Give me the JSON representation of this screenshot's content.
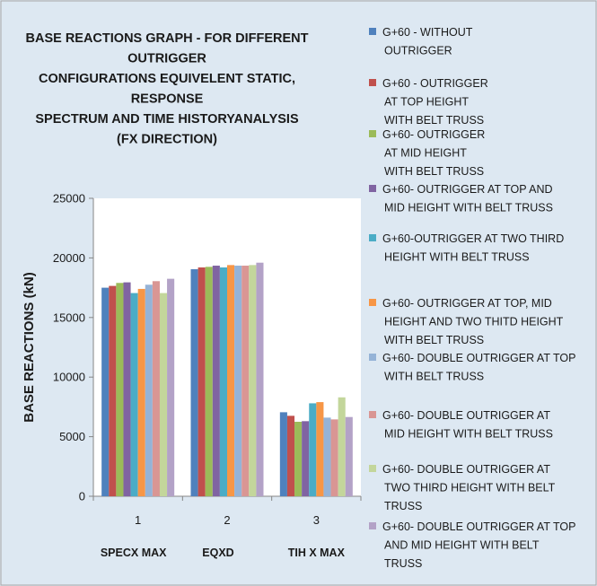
{
  "chart_data": {
    "type": "bar",
    "title_lines": [
      "BASE REACTIONS GRAPH - FOR DIFFERENT",
      "OUTRIGGER",
      "CONFIGURATIONS EQUIVELENT STATIC,",
      "RESPONSE",
      "SPECTRUM AND TIME HISTORYANALYSIS",
      "(FX DIRECTION)"
    ],
    "ylabel": "BASE REACTIONS (kN)",
    "ylim": [
      0,
      25000
    ],
    "yticks": [
      "0",
      "5000",
      "10000",
      "15000",
      "20000",
      "25000"
    ],
    "ytick_values": [
      0,
      5000,
      10000,
      15000,
      20000,
      25000
    ],
    "categories": [
      "1",
      "2",
      "3"
    ],
    "category_names": [
      "SPECX MAX",
      "EQXD",
      "TIH X MAX"
    ],
    "gridlines": false,
    "legend_position": "right",
    "series": [
      {
        "name_lines": [
          "G+60 - WITHOUT",
          "OUTRIGGER"
        ],
        "color": "#4f81bd",
        "values": [
          17500,
          19050,
          7050
        ]
      },
      {
        "name_lines": [
          "G+60 - OUTRIGGER",
          "AT TOP HEIGHT",
          "WITH BELT TRUSS"
        ],
        "color": "#c0504d",
        "values": [
          17650,
          19200,
          6750
        ]
      },
      {
        "name_lines": [
          "G+60- OUTRIGGER",
          "AT MID HEIGHT",
          "WITH BELT TRUSS"
        ],
        "color": "#9bbb59",
        "values": [
          17900,
          19250,
          6250
        ]
      },
      {
        "name_lines": [
          "G+60- OUTRIGGER AT TOP AND",
          "MID HEIGHT WITH BELT TRUSS"
        ],
        "color": "#8064a2",
        "values": [
          17950,
          19350,
          6300
        ]
      },
      {
        "name_lines": [
          "G+60-OUTRIGGER AT TWO THIRD",
          "HEIGHT WITH BELT TRUSS"
        ],
        "color": "#4bacc6",
        "values": [
          17050,
          19200,
          7800
        ]
      },
      {
        "name_lines": [
          "G+60- OUTRIGGER AT TOP, MID",
          "HEIGHT AND TWO THITD HEIGHT",
          "WITH BELT TRUSS"
        ],
        "color": "#f79646",
        "values": [
          17400,
          19400,
          7900
        ]
      },
      {
        "name_lines": [
          "G+60- DOUBLE OUTRIGGER AT TOP",
          "WITH BELT TRUSS"
        ],
        "color": "#95b3d7",
        "values": [
          17750,
          19350,
          6600
        ]
      },
      {
        "name_lines": [
          "G+60- DOUBLE OUTRIGGER AT",
          "MID HEIGHT WITH BELT TRUSS"
        ],
        "color": "#d99694",
        "values": [
          18050,
          19350,
          6450
        ]
      },
      {
        "name_lines": [
          "G+60- DOUBLE OUTRIGGER AT",
          "TWO THIRD HEIGHT WITH BELT",
          "TRUSS"
        ],
        "color": "#c3d69b",
        "values": [
          17050,
          19400,
          8300
        ]
      },
      {
        "name_lines": [
          "G+60- DOUBLE OUTRIGGER AT TOP",
          "AND MID HEIGHT WITH BELT",
          "TRUSS"
        ],
        "color": "#b3a2c7",
        "values": [
          18250,
          19600,
          6650
        ]
      }
    ]
  }
}
